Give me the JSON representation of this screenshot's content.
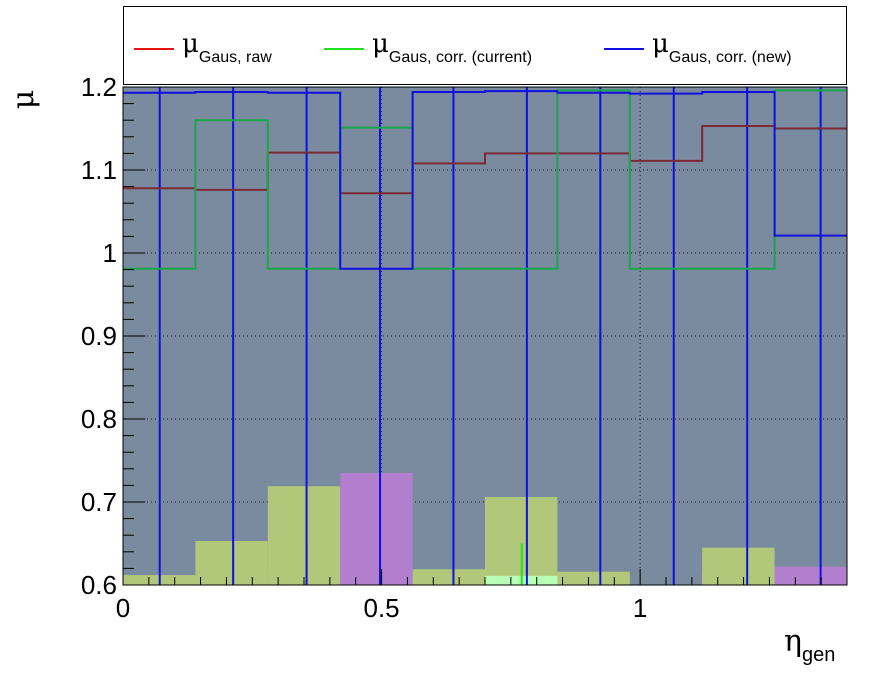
{
  "chart_data": {
    "type": "histogram",
    "x_range": [
      0,
      1.4
    ],
    "y_range": [
      0.6,
      1.2
    ],
    "bin_edges": [
      0,
      0.14,
      0.28,
      0.42,
      0.56,
      0.7,
      0.84,
      0.98,
      1.12,
      1.26,
      1.4
    ],
    "x_ticks": [
      {
        "value": 0,
        "label": "0"
      },
      {
        "value": 0.5,
        "label": "0.5"
      },
      {
        "value": 1,
        "label": "1"
      }
    ],
    "y_ticks": [
      {
        "value": 0.6,
        "label": "0.6"
      },
      {
        "value": 0.7,
        "label": "0.7"
      },
      {
        "value": 0.8,
        "label": "0.8"
      },
      {
        "value": 0.9,
        "label": "0.9"
      },
      {
        "value": 1.0,
        "label": "1"
      },
      {
        "value": 1.1,
        "label": "1.1"
      },
      {
        "value": 1.2,
        "label": "1.2"
      }
    ],
    "xlabel": {
      "main": "η",
      "sub": "gen"
    },
    "ylabel": "μ",
    "grid": true,
    "legend_position": "top",
    "frame_fill": "#7a8a9f",
    "series": [
      {
        "name": "raw",
        "label_main": "μ",
        "label_sub": "Gaus, raw",
        "color": "#e8120f",
        "line_color": "#7b2a35",
        "values": [
          1.078,
          1.076,
          1.121,
          1.072,
          1.108,
          1.12,
          1.12,
          1.111,
          1.153,
          1.15
        ],
        "shade": [
          0.61,
          0.613,
          null,
          null,
          0.605,
          null,
          null,
          null,
          0.616,
          null
        ],
        "shade_color": "#ff9e9e"
      },
      {
        "name": "corr_current",
        "label_main": "μ",
        "label_sub": "Gaus, corr. (current)",
        "color": "#22e022",
        "line_color": "#1aa64a",
        "values": [
          0.981,
          1.16,
          0.981,
          1.151,
          0.981,
          0.981,
          1.196,
          0.981,
          0.981,
          1.196
        ],
        "shade": [
          0.612,
          0.653,
          0.719,
          null,
          0.619,
          0.706,
          0.616,
          null,
          0.645,
          null
        ],
        "shade_color": "#b1c77a"
      },
      {
        "name": "corr_new",
        "label_main": "μ",
        "label_sub": "Gaus, corr. (new)",
        "color": "#1010e0",
        "line_color": "#1010e0",
        "values": [
          1.193,
          1.194,
          1.193,
          0.981,
          1.194,
          1.195,
          1.193,
          1.192,
          1.194,
          1.021
        ],
        "shade": [
          null,
          null,
          null,
          0.735,
          null,
          null,
          null,
          null,
          null,
          0.622
        ],
        "shade_color": "#b27fce"
      }
    ],
    "shade_extra": [
      {
        "bin": 5,
        "value": 0.611,
        "color": "#b7ffb7"
      }
    ],
    "blue_spikes": [
      0.071,
      0.213,
      0.355,
      0.497,
      0.639,
      0.781,
      0.923,
      1.065,
      1.207,
      1.349
    ],
    "green_spikes": [
      0.355,
      0.771
    ]
  }
}
